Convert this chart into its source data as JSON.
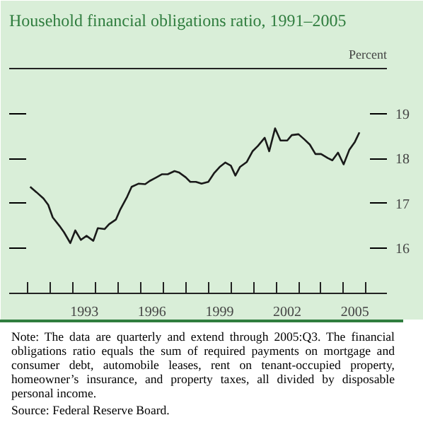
{
  "chart_data": {
    "type": "line",
    "title": "Household financial obligations ratio, 1991–2005",
    "ylabel": "Percent",
    "x": [
      1991.1,
      1991.38,
      1991.69,
      1991.9,
      1992.1,
      1992.4,
      1992.6,
      1992.88,
      1993.1,
      1993.35,
      1993.6,
      1993.9,
      1994.1,
      1994.4,
      1994.6,
      1994.9,
      1995.1,
      1995.4,
      1995.6,
      1995.9,
      1996.2,
      1996.4,
      1996.7,
      1996.95,
      1997.2,
      1997.5,
      1997.7,
      1998.0,
      1998.2,
      1998.45,
      1998.7,
      1999.0,
      1999.25,
      1999.5,
      1999.75,
      2000.0,
      2000.2,
      2000.4,
      2000.7,
      2000.96,
      2001.2,
      2001.5,
      2001.7,
      2001.96,
      2002.2,
      2002.5,
      2002.7,
      2003.0,
      2003.25,
      2003.5,
      2003.75,
      2004.0,
      2004.3,
      2004.5,
      2004.75,
      2005.0,
      2005.25,
      2005.5,
      2005.7
    ],
    "series": [
      {
        "color": "#1a1a1a",
        "values": [
          17.37,
          17.25,
          17.11,
          16.97,
          16.69,
          16.5,
          16.36,
          16.12,
          16.4,
          16.19,
          16.28,
          16.17,
          16.45,
          16.43,
          16.54,
          16.64,
          16.87,
          17.15,
          17.37,
          17.44,
          17.43,
          17.5,
          17.58,
          17.65,
          17.65,
          17.72,
          17.69,
          17.58,
          17.48,
          17.48,
          17.44,
          17.48,
          17.67,
          17.81,
          17.91,
          17.84,
          17.62,
          17.81,
          17.92,
          18.16,
          18.28,
          18.46,
          18.16,
          18.67,
          18.4,
          18.4,
          18.52,
          18.54,
          18.43,
          18.31,
          18.1,
          18.1,
          18.01,
          17.96,
          18.13,
          17.87,
          18.19,
          18.37,
          18.58
        ]
      }
    ],
    "xlim": [
      1990.17,
      2006.92
    ],
    "xticks": [
      {
        "value": 1991,
        "label": null
      },
      {
        "value": 1992,
        "label": null
      },
      {
        "value": 1993,
        "label": null
      },
      {
        "value": 1994,
        "label": null
      },
      {
        "value": 1995,
        "label": null
      },
      {
        "value": 1996,
        "label": null
      },
      {
        "value": 1997,
        "label": null
      },
      {
        "value": 1998,
        "label": null
      },
      {
        "value": 1999,
        "label": null
      },
      {
        "value": 2000,
        "label": null
      },
      {
        "value": 2001,
        "label": null
      },
      {
        "value": 2002,
        "label": null
      },
      {
        "value": 2003,
        "label": null
      },
      {
        "value": 2004,
        "label": null
      },
      {
        "value": 2005,
        "label": null
      },
      {
        "value": 2006,
        "label": null
      },
      {
        "value": 1993.5,
        "label": "1993"
      },
      {
        "value": 1996.5,
        "label": "1996"
      },
      {
        "value": 1999.5,
        "label": "1999"
      },
      {
        "value": 2002.5,
        "label": "2002"
      },
      {
        "value": 2005.5,
        "label": "2005"
      }
    ],
    "ylim": [
      15,
      20
    ],
    "yticks": [
      16,
      17,
      18,
      19
    ],
    "grid": false,
    "marker": "none",
    "line_style": "solid",
    "annotations": [
      "Note: The data are quarterly and extend through 2005:Q3. The financial obligations ratio equals the sum of required payments on mortgage and consumer debt, automobile leases, rent on tenant-occupied property, homeowner’s insurance, and property taxes, all divided by disposable personal income.",
      "Source: Federal Reserve Board."
    ]
  }
}
